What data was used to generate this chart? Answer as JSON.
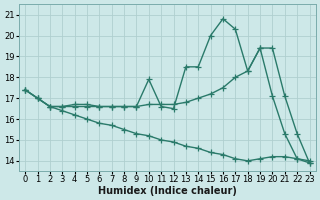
{
  "background_color": "#cde8e8",
  "grid_color": "#b0cfcf",
  "line_color": "#2a7a6a",
  "marker_style": "+",
  "marker_size": 4,
  "line_width": 1.0,
  "xlabel": "Humidex (Indice chaleur)",
  "xlabel_fontsize": 7,
  "tick_fontsize": 6,
  "ylim": [
    13.5,
    21.5
  ],
  "xlim": [
    -0.5,
    23.5
  ],
  "yticks": [
    14,
    15,
    16,
    17,
    18,
    19,
    20,
    21
  ],
  "xticks": [
    0,
    1,
    2,
    3,
    4,
    5,
    6,
    7,
    8,
    9,
    10,
    11,
    12,
    13,
    14,
    15,
    16,
    17,
    18,
    19,
    20,
    21,
    22,
    23
  ],
  "series": [
    {
      "x": [
        0,
        1,
        2,
        3,
        4,
        5,
        6,
        7,
        8,
        9,
        10,
        11,
        12,
        13,
        14,
        15,
        16,
        17,
        18,
        19,
        20,
        21,
        22,
        23
      ],
      "y": [
        17.4,
        17.0,
        16.6,
        16.4,
        16.2,
        16.0,
        15.8,
        15.7,
        15.5,
        15.3,
        15.2,
        15.0,
        14.9,
        14.7,
        14.6,
        14.4,
        14.3,
        14.1,
        14.0,
        14.1,
        14.2,
        14.2,
        14.1,
        14.0
      ]
    },
    {
      "x": [
        0,
        1,
        2,
        3,
        4,
        5,
        6,
        7,
        8,
        9,
        10,
        11,
        12,
        13,
        14,
        15,
        16,
        17,
        18,
        19,
        20,
        21,
        22,
        23
      ],
      "y": [
        17.4,
        17.0,
        16.6,
        16.6,
        16.6,
        16.6,
        16.6,
        16.6,
        16.6,
        16.6,
        16.7,
        16.7,
        16.7,
        16.8,
        17.0,
        17.2,
        17.5,
        18.0,
        18.3,
        19.4,
        19.4,
        17.1,
        15.3,
        13.9
      ]
    },
    {
      "x": [
        0,
        1,
        2,
        3,
        4,
        5,
        6,
        7,
        8,
        9,
        10,
        11,
        12,
        13,
        14,
        15,
        16,
        17,
        18,
        19,
        20,
        21,
        22,
        23
      ],
      "y": [
        17.4,
        17.0,
        16.6,
        16.6,
        16.7,
        16.7,
        16.6,
        16.6,
        16.6,
        16.6,
        17.9,
        16.6,
        16.5,
        18.5,
        18.5,
        20.0,
        20.8,
        20.3,
        18.3,
        19.4,
        17.1,
        15.3,
        14.1,
        13.9
      ]
    }
  ]
}
